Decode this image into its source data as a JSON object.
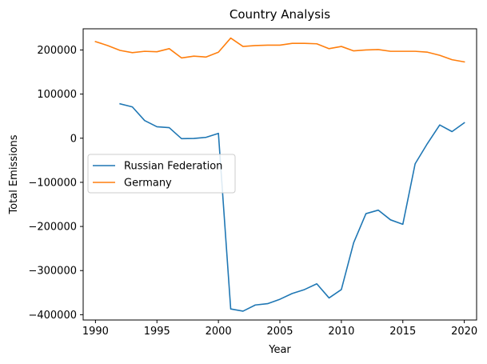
{
  "chart_data": {
    "type": "line",
    "title": "Country Analysis",
    "xlabel": "Year",
    "ylabel": "Total Emissions",
    "xlim": [
      1989,
      2021
    ],
    "ylim": [
      -412000,
      248000
    ],
    "xticks": [
      1990,
      1995,
      2000,
      2005,
      2010,
      2015,
      2020
    ],
    "yticks": [
      -400000,
      -300000,
      -200000,
      -100000,
      0,
      100000,
      200000
    ],
    "ytick_labels": [
      "−400000",
      "−300000",
      "−200000",
      "−100000",
      "0",
      "100000",
      "200000"
    ],
    "grid": false,
    "legend_position": "center-left",
    "series": [
      {
        "name": "Russian Federation",
        "color": "#1f77b4",
        "x": [
          1992,
          1993,
          1994,
          1995,
          1996,
          1997,
          1998,
          1999,
          2000,
          2001,
          2002,
          2003,
          2004,
          2005,
          2006,
          2007,
          2008,
          2009,
          2010,
          2011,
          2012,
          2013,
          2014,
          2015,
          2016,
          2017,
          2018,
          2019,
          2020
        ],
        "values": [
          78000,
          71000,
          40000,
          26000,
          24000,
          -1000,
          -500,
          2000,
          11000,
          -387000,
          -392000,
          -378000,
          -375000,
          -365000,
          -352000,
          -343000,
          -330000,
          -362000,
          -343000,
          -237000,
          -171000,
          -163000,
          -185000,
          -195000,
          -58000,
          -12000,
          30000,
          15000,
          35000
        ]
      },
      {
        "name": "Germany",
        "color": "#ff7f0e",
        "x": [
          1990,
          1991,
          1992,
          1993,
          1994,
          1995,
          1996,
          1997,
          1998,
          1999,
          2000,
          2001,
          2002,
          2003,
          2004,
          2005,
          2006,
          2007,
          2008,
          2009,
          2010,
          2011,
          2012,
          2013,
          2014,
          2015,
          2016,
          2017,
          2018,
          2019,
          2020
        ],
        "values": [
          219000,
          210000,
          199000,
          194000,
          197000,
          196000,
          203000,
          182000,
          186000,
          184000,
          195000,
          227000,
          208000,
          210000,
          211000,
          211000,
          215000,
          215000,
          214000,
          203000,
          208000,
          198000,
          200000,
          201000,
          197000,
          197000,
          197000,
          195000,
          188000,
          178000,
          173000
        ]
      }
    ]
  }
}
